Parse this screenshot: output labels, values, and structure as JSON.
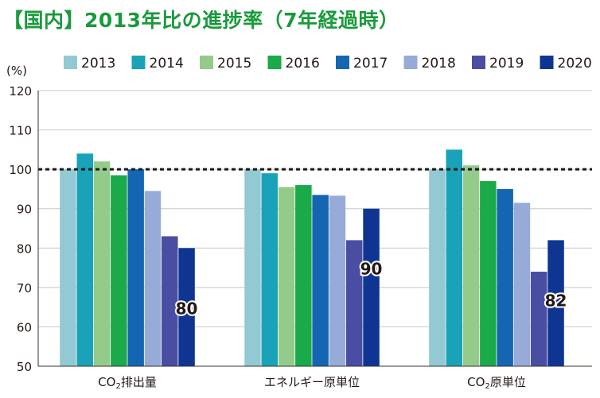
{
  "title": "【国内】2013年比の進捗率（7年経過時）",
  "chart_data": {
    "type": "bar",
    "ylabel": "(%)",
    "ylim": [
      50,
      120
    ],
    "yticks": [
      50,
      60,
      70,
      80,
      90,
      100,
      110,
      120
    ],
    "reference_line": 100,
    "grid": true,
    "legend_position": "top",
    "categories": [
      {
        "main": "CO",
        "sub": "2",
        "rest": "排出量"
      },
      {
        "main": "エネルギー原単位",
        "sub": "",
        "rest": ""
      },
      {
        "main": "CO",
        "sub": "2",
        "rest": "原単位"
      }
    ],
    "series": [
      {
        "name": "2013",
        "color": "#92c9d2",
        "values": [
          100,
          100,
          100
        ]
      },
      {
        "name": "2014",
        "color": "#1aa3b8",
        "values": [
          104,
          99,
          105
        ]
      },
      {
        "name": "2015",
        "color": "#94cb8a",
        "values": [
          102,
          95.5,
          101
        ]
      },
      {
        "name": "2016",
        "color": "#1aaa4a",
        "values": [
          98.5,
          96,
          97
        ]
      },
      {
        "name": "2017",
        "color": "#1466b3",
        "values": [
          100,
          93.5,
          95
        ]
      },
      {
        "name": "2018",
        "color": "#97abd9",
        "values": [
          94.5,
          93.3,
          91.5
        ]
      },
      {
        "name": "2019",
        "color": "#4a4ea3",
        "values": [
          83,
          82,
          74
        ]
      },
      {
        "name": "2020",
        "color": "#0e3592",
        "values": [
          80,
          90,
          82
        ]
      }
    ],
    "data_labels": [
      "80",
      "90",
      "82"
    ]
  }
}
